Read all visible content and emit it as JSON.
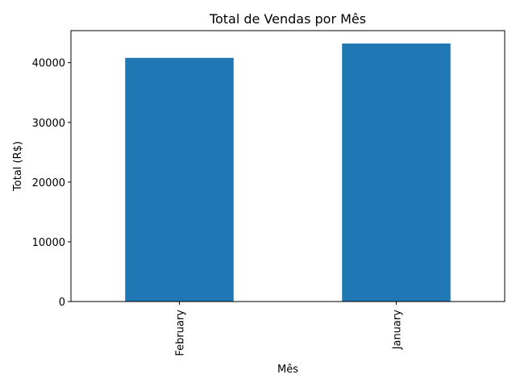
{
  "chart_data": {
    "type": "bar",
    "title": "Total de Vendas por Mês",
    "xlabel": "Mês",
    "ylabel": "Total (R$)",
    "categories": [
      "February",
      "January"
    ],
    "values": [
      40800,
      43200
    ],
    "ylim": [
      0,
      45360
    ],
    "yticks": [
      0,
      10000,
      20000,
      30000,
      40000
    ],
    "ytick_labels": [
      "0",
      "10000",
      "20000",
      "30000",
      "40000"
    ],
    "grid": false,
    "legend": "none",
    "bar_color": "#1f77b4"
  }
}
